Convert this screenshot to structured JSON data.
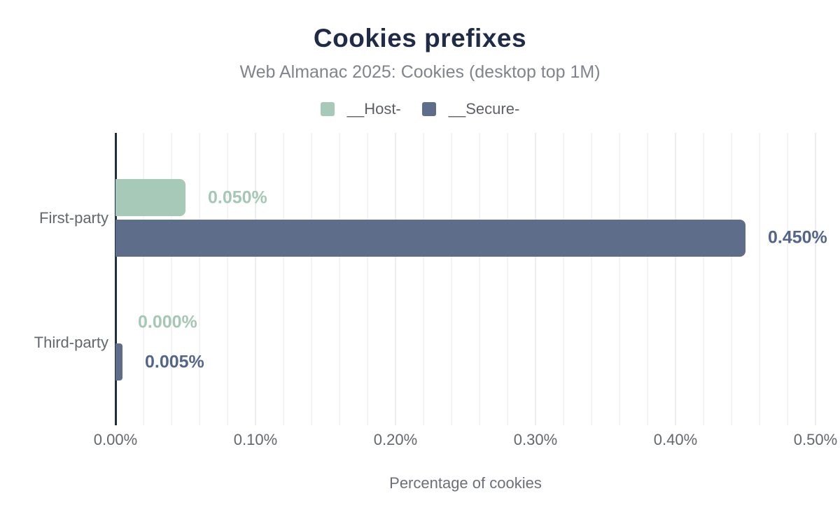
{
  "header": {
    "title": "Cookies prefixes",
    "subtitle": "Web Almanac 2025: Cookies (desktop top 1M)"
  },
  "legend": [
    {
      "label": "__Host-",
      "color": "#a7c9b7"
    },
    {
      "label": "__Secure-",
      "color": "#5e6d8a"
    }
  ],
  "colors": {
    "title_text": "#1f2b47",
    "subtitle_text": "#7f848d",
    "axis_line": "#212d49",
    "axis_text": "#63676e",
    "grid_minor": "#f4f4f6",
    "grid_major": "#ebedf0"
  },
  "chart_data": {
    "type": "bar",
    "orientation": "horizontal",
    "title": "Cookies prefixes",
    "subtitle": "Web Almanac 2025: Cookies (desktop top 1M)",
    "categories": [
      "First-party",
      "Third-party"
    ],
    "series": [
      {
        "name": "__Host-",
        "color": "#a7c9b7",
        "label_color": "#a5c8b5",
        "values": [
          0.05,
          0.0
        ],
        "labels": [
          "0.050%",
          "0.000%"
        ]
      },
      {
        "name": "__Secure-",
        "color": "#5e6d8a",
        "label_color": "#54658a",
        "values": [
          0.45,
          0.005
        ],
        "labels": [
          "0.450%",
          "0.005%"
        ]
      }
    ],
    "xlabel": "Percentage of cookies",
    "ylabel": "",
    "xlim": [
      0,
      0.5
    ],
    "x_ticks": [
      "0.00%",
      "0.10%",
      "0.20%",
      "0.30%",
      "0.40%",
      "0.50%"
    ],
    "x_tick_values": [
      0,
      0.1,
      0.2,
      0.3,
      0.4,
      0.5
    ],
    "grid": {
      "minor_step": 0.02,
      "major_step": 0.1,
      "axis": "x"
    },
    "legend_position": "top"
  }
}
